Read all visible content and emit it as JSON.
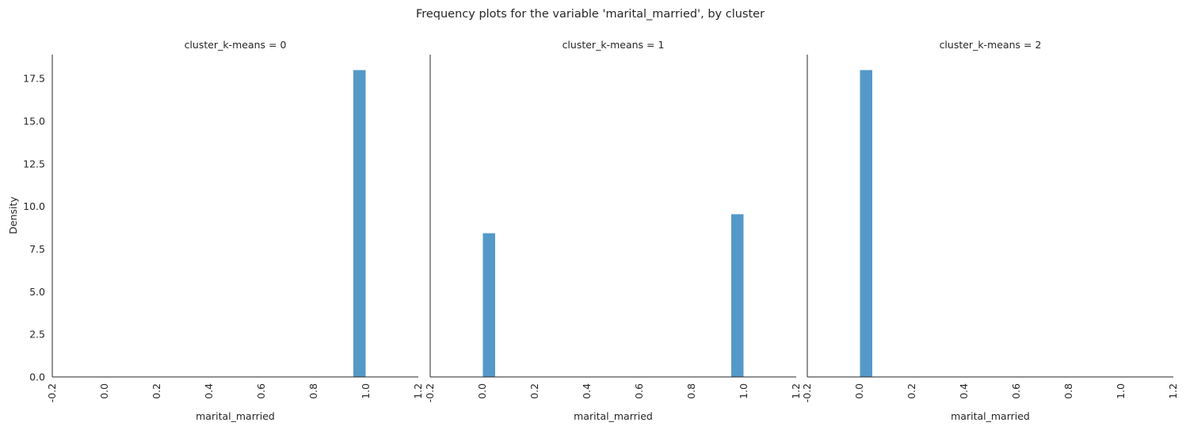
{
  "figure": {
    "title": "Frequency plots for the variable 'marital_married', by cluster",
    "xlabel": "marital_married",
    "ylabel": "Density"
  },
  "chart_data": [
    {
      "type": "bar",
      "title": "cluster_k-means = 0",
      "xlabel": "marital_married",
      "ylabel": "Density",
      "xlim": [
        -0.2,
        1.2
      ],
      "ylim": [
        0,
        18.9
      ],
      "xticks": [
        "-0.2",
        "0.0",
        "0.2",
        "0.4",
        "0.6",
        "0.8",
        "1.0",
        "1.2"
      ],
      "yticks": [
        "0.0",
        "2.5",
        "5.0",
        "7.5",
        "10.0",
        "12.5",
        "15.0",
        "17.5"
      ],
      "bars": [
        {
          "x0": 0.95,
          "x1": 1.0,
          "value": 18.0
        }
      ],
      "color": "#4c93c6",
      "grid": false
    },
    {
      "type": "bar",
      "title": "cluster_k-means = 1",
      "xlabel": "marital_married",
      "ylabel": "",
      "xlim": [
        -0.2,
        1.2
      ],
      "ylim": [
        0,
        18.9
      ],
      "xticks": [
        "-0.2",
        "0.0",
        "0.2",
        "0.4",
        "0.6",
        "0.8",
        "1.0",
        "1.2"
      ],
      "yticks": [],
      "bars": [
        {
          "x0": 0.0,
          "x1": 0.05,
          "value": 8.45
        },
        {
          "x0": 0.95,
          "x1": 1.0,
          "value": 9.55
        }
      ],
      "color": "#4c93c6",
      "grid": false
    },
    {
      "type": "bar",
      "title": "cluster_k-means = 2",
      "xlabel": "marital_married",
      "ylabel": "",
      "xlim": [
        -0.2,
        1.2
      ],
      "ylim": [
        0,
        18.9
      ],
      "xticks": [
        "-0.2",
        "0.0",
        "0.2",
        "0.4",
        "0.6",
        "0.8",
        "1.0",
        "1.2"
      ],
      "yticks": [],
      "bars": [
        {
          "x0": 0.0,
          "x1": 0.05,
          "value": 18.0
        }
      ],
      "color": "#4c93c6",
      "grid": false
    }
  ]
}
